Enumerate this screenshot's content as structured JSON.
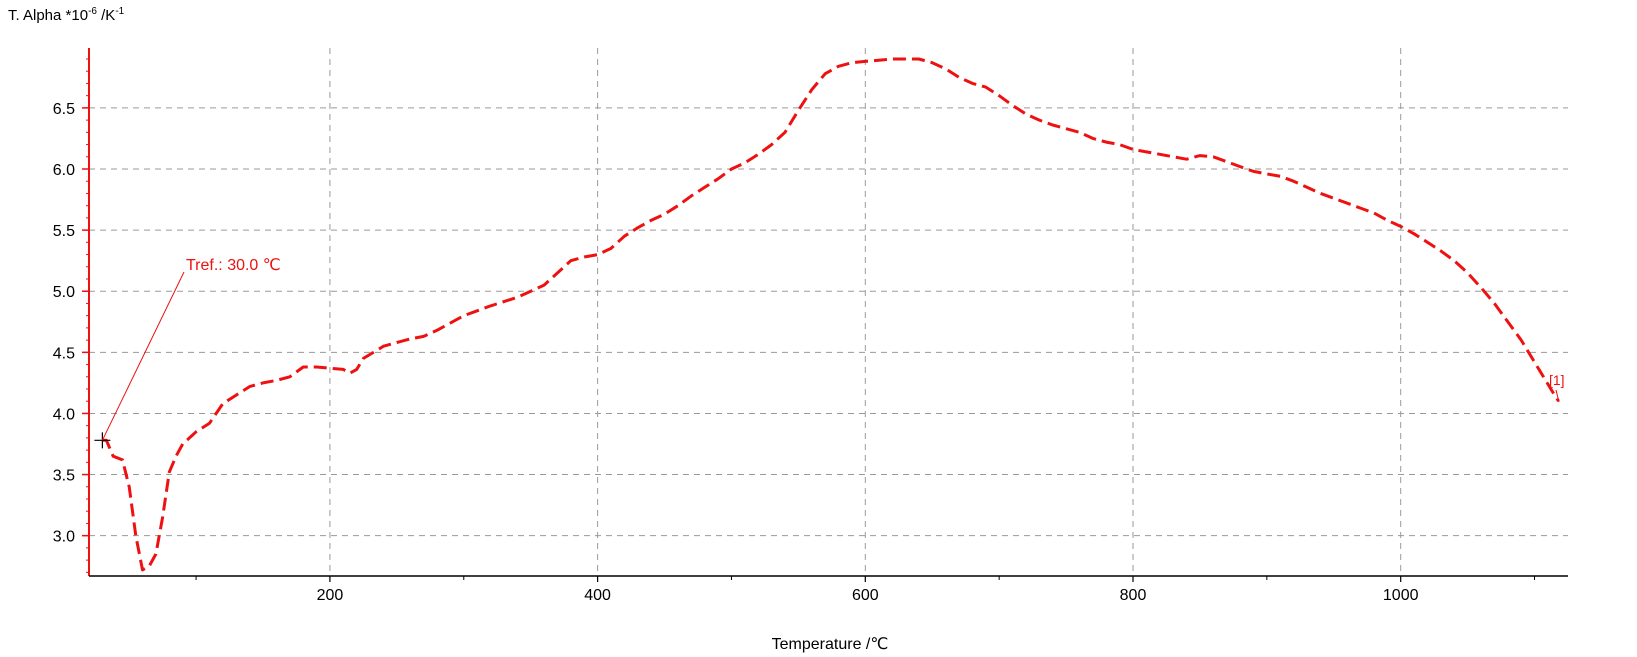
{
  "chart_data": {
    "type": "line",
    "ylabel": {
      "prefix": "T. Alpha *10",
      "exp1": "-6",
      "mid": " /K",
      "exp2": "-1"
    },
    "xlabel": "Temperature /℃",
    "xlim": [
      20,
      1125
    ],
    "ylim": [
      2.67,
      6.99
    ],
    "x_ticks": [
      200,
      400,
      600,
      800,
      1000
    ],
    "x_tick_labels": [
      "200",
      "400",
      "600",
      "800",
      "1000"
    ],
    "y_ticks": [
      3.0,
      3.5,
      4.0,
      4.5,
      5.0,
      5.5,
      6.0,
      6.5
    ],
    "y_tick_labels": [
      "3.0",
      "3.5",
      "4.0",
      "4.5",
      "5.0",
      "5.5",
      "6.0",
      "6.5"
    ],
    "grid": true,
    "series": [
      {
        "name": "[1]",
        "color": "#ee1111",
        "style": "dashed",
        "x": [
          30,
          33,
          38,
          45,
          50,
          55,
          60,
          65,
          70,
          75,
          80,
          85,
          90,
          100,
          110,
          115,
          120,
          130,
          140,
          150,
          160,
          170,
          180,
          190,
          200,
          210,
          215,
          220,
          225,
          240,
          260,
          270,
          280,
          300,
          320,
          340,
          350,
          360,
          370,
          380,
          390,
          400,
          410,
          420,
          430,
          440,
          450,
          460,
          470,
          480,
          490,
          500,
          510,
          520,
          530,
          540,
          550,
          560,
          570,
          580,
          590,
          600,
          610,
          620,
          630,
          640,
          650,
          660,
          670,
          680,
          690,
          700,
          710,
          720,
          730,
          740,
          750,
          760,
          770,
          780,
          790,
          800,
          810,
          820,
          830,
          840,
          850,
          860,
          870,
          880,
          890,
          900,
          910,
          920,
          930,
          940,
          950,
          960,
          970,
          980,
          990,
          1000,
          1010,
          1020,
          1030,
          1040,
          1050,
          1060,
          1070,
          1080,
          1090,
          1100,
          1110,
          1115,
          1118
        ],
        "y": [
          3.78,
          3.78,
          3.65,
          3.62,
          3.4,
          3.0,
          2.72,
          2.75,
          2.85,
          3.15,
          3.52,
          3.65,
          3.75,
          3.85,
          3.92,
          4.0,
          4.08,
          4.15,
          4.22,
          4.25,
          4.27,
          4.3,
          4.38,
          4.38,
          4.37,
          4.36,
          4.33,
          4.36,
          4.45,
          4.55,
          4.61,
          4.63,
          4.68,
          4.8,
          4.88,
          4.95,
          5.0,
          5.05,
          5.15,
          5.25,
          5.28,
          5.3,
          5.35,
          5.45,
          5.52,
          5.58,
          5.63,
          5.7,
          5.78,
          5.85,
          5.92,
          6.0,
          6.05,
          6.12,
          6.2,
          6.3,
          6.48,
          6.65,
          6.78,
          6.84,
          6.87,
          6.88,
          6.89,
          6.9,
          6.9,
          6.9,
          6.87,
          6.82,
          6.75,
          6.7,
          6.67,
          6.6,
          6.52,
          6.45,
          6.4,
          6.36,
          6.33,
          6.3,
          6.25,
          6.22,
          6.2,
          6.16,
          6.14,
          6.12,
          6.1,
          6.08,
          6.11,
          6.1,
          6.06,
          6.02,
          5.98,
          5.96,
          5.94,
          5.9,
          5.85,
          5.8,
          5.76,
          5.72,
          5.68,
          5.64,
          5.58,
          5.53,
          5.47,
          5.4,
          5.33,
          5.25,
          5.15,
          5.03,
          4.9,
          4.75,
          4.6,
          4.42,
          4.24,
          4.15,
          4.1
        ]
      }
    ],
    "annotations": [
      {
        "text": "Tref.: 30.0 ℃",
        "x": 30,
        "y": 3.78,
        "color": "#ee1111"
      },
      {
        "text": "[1]",
        "color": "#ee1111"
      }
    ]
  }
}
